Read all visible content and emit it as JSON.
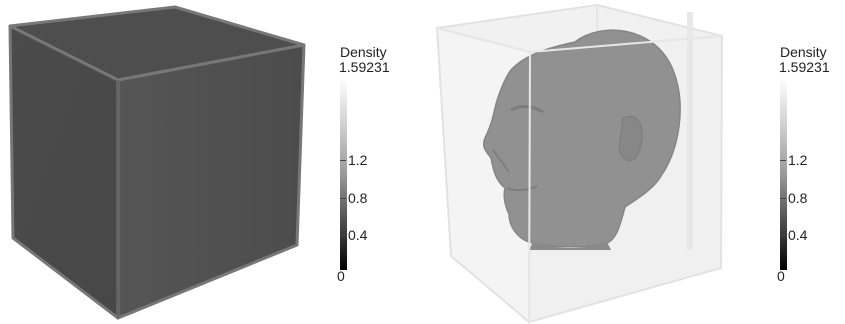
{
  "views": [
    {
      "id": "left",
      "description_key": "opaque volume cube",
      "colorbar": {
        "title": "Density",
        "max_label": "1.59231",
        "ticks": [
          "1.2",
          "0.8",
          "0.4"
        ],
        "min_label": "0"
      }
    },
    {
      "id": "right",
      "description_key": "translucent volume cube with head",
      "colorbar": {
        "title": "Density",
        "max_label": "1.59231",
        "ticks": [
          "1.2",
          "0.8",
          "0.4"
        ],
        "min_label": "0"
      }
    }
  ],
  "colors": {
    "background": "#ffffff",
    "cube_opaque": "#4a4a4a",
    "cube_translucent": "#efefef",
    "head": "#8f8f8f"
  }
}
